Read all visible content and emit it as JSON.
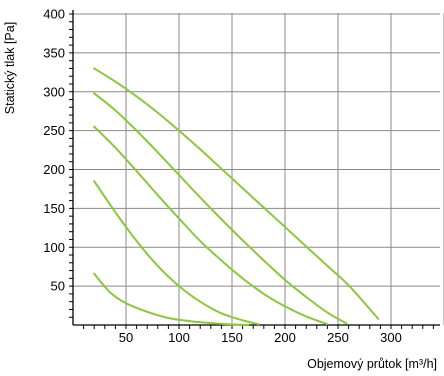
{
  "chart_data": {
    "type": "line",
    "xlabel": "Objemový průtok [m³/h]",
    "ylabel": "Statický tlak [Pa]",
    "xlim": [
      0,
      350
    ],
    "ylim": [
      0,
      400
    ],
    "xticks": [
      50,
      100,
      150,
      200,
      250,
      300
    ],
    "yticks": [
      50,
      100,
      150,
      200,
      250,
      300,
      350,
      400
    ],
    "grid": true,
    "line_color": "#8cc63f",
    "series": [
      {
        "x": [
          20,
          40,
          60,
          80,
          100,
          120,
          140,
          160,
          180,
          200,
          220,
          240,
          260,
          288
        ],
        "y": [
          330,
          313,
          294,
          273,
          250,
          226,
          201,
          176,
          151,
          126,
          101,
          76,
          51,
          8
        ]
      },
      {
        "x": [
          20,
          40,
          60,
          80,
          100,
          120,
          140,
          160,
          180,
          200,
          220,
          240,
          258
        ],
        "y": [
          298,
          276,
          250,
          222,
          193,
          164,
          136,
          109,
          83,
          58,
          36,
          16,
          2
        ]
      },
      {
        "x": [
          20,
          40,
          60,
          80,
          100,
          120,
          140,
          160,
          180,
          200,
          220,
          240
        ],
        "y": [
          255,
          228,
          198,
          167,
          137,
          108,
          83,
          60,
          40,
          24,
          11,
          1
        ]
      },
      {
        "x": [
          20,
          40,
          60,
          80,
          100,
          120,
          140,
          160,
          175
        ],
        "y": [
          185,
          145,
          108,
          76,
          50,
          30,
          15,
          6,
          1
        ]
      },
      {
        "x": [
          20,
          35,
          50,
          70,
          90,
          110,
          125,
          145,
          165
        ],
        "y": [
          66,
          42,
          28,
          17,
          9,
          5,
          3,
          1,
          0
        ]
      }
    ]
  }
}
